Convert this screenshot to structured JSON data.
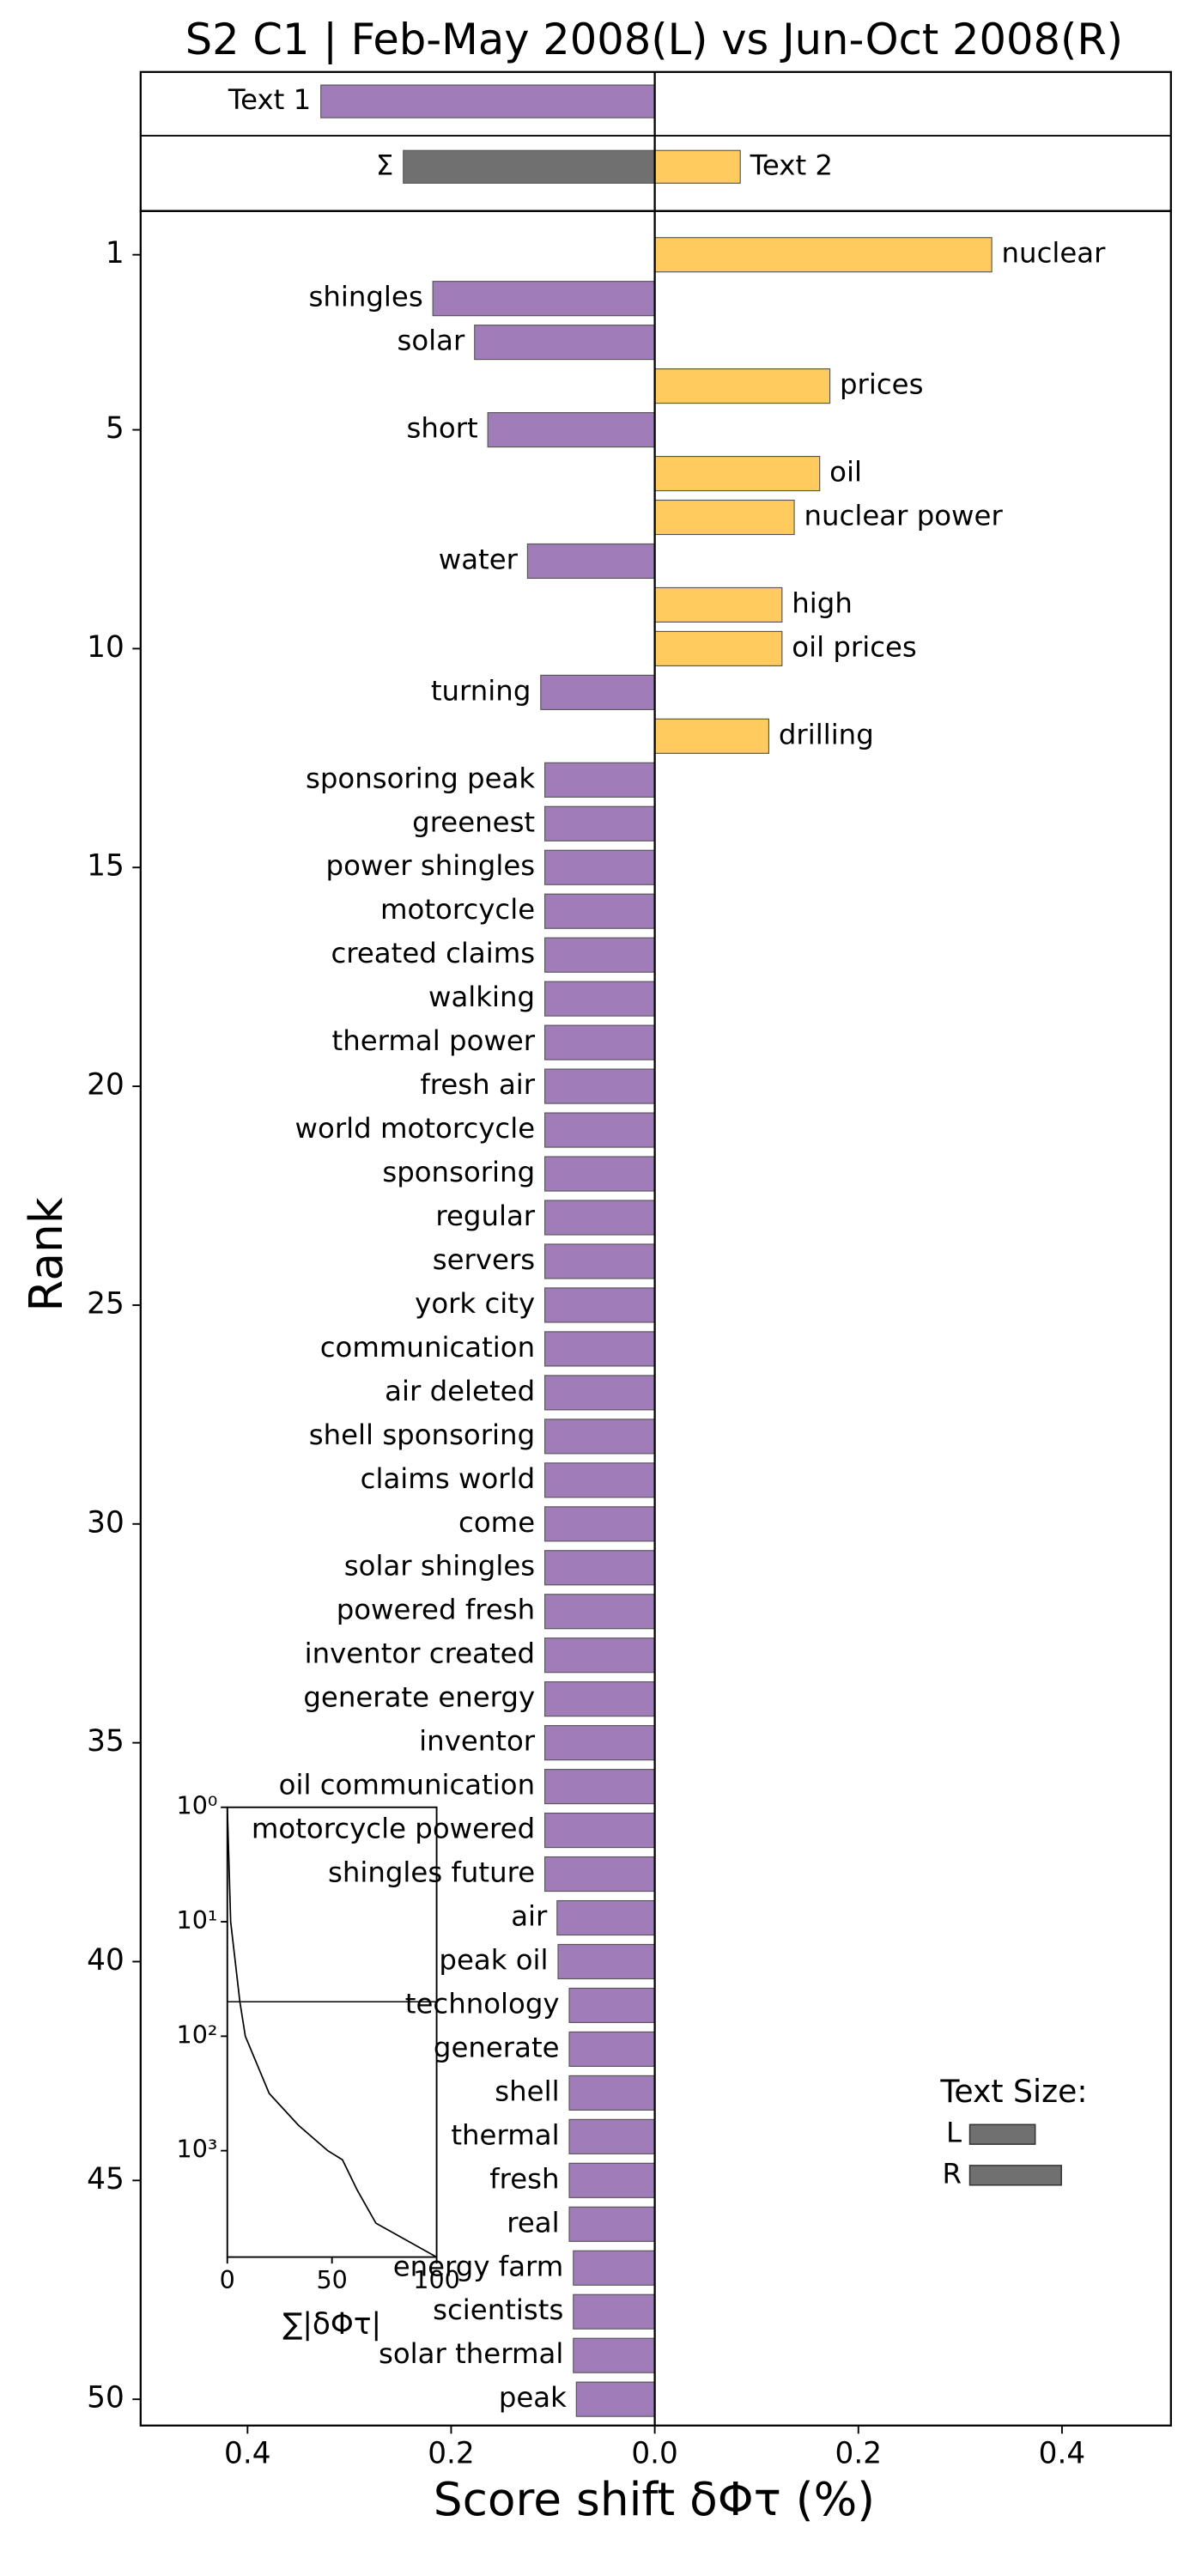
{
  "chart_data": {
    "type": "word_shift",
    "title": "S2 C1 | Feb-May 2008(L) vs Jun-Oct 2008(R)",
    "xlabel": "Score shift δΦτ (%)",
    "ylabel": "Rank",
    "xlim": [
      -0.505,
      0.507
    ],
    "xticks": [
      {
        "value": -0.4,
        "label": "0.4"
      },
      {
        "value": -0.2,
        "label": "0.2"
      },
      {
        "value": 0,
        "label": "0.0"
      },
      {
        "value": 0.2,
        "label": "0.2"
      },
      {
        "value": 0.4,
        "label": "0.4"
      }
    ],
    "ylim": [
      50.6,
      0
    ],
    "yticks": [
      1,
      5,
      10,
      15,
      20,
      25,
      30,
      35,
      40,
      45,
      50
    ],
    "left_color": "#a07cb9",
    "right_color": "#ffcb5e",
    "words": [
      "nuclear",
      "shingles",
      "solar",
      "prices",
      "short",
      "oil",
      "nuclear power",
      "water",
      "high",
      "oil prices",
      "turning",
      "drilling",
      "sponsoring peak",
      "greenest",
      "power shingles",
      "motorcycle",
      "created claims",
      "walking",
      "thermal power",
      "fresh air",
      "world motorcycle",
      "sponsoring",
      "regular",
      "servers",
      "york city",
      "communication",
      "air deleted",
      "shell sponsoring",
      "claims world",
      "come",
      "solar shingles",
      "powered fresh",
      "inventor created",
      "generate energy",
      "inventor",
      "oil communication",
      "motorcycle powered",
      "shingles future",
      "air",
      "peak oil",
      "technology",
      "generate",
      "shell",
      "thermal",
      "fresh",
      "real",
      "energy farm",
      "scientists",
      "solar thermal",
      "peak"
    ],
    "values": [
      0.331,
      -0.218,
      -0.177,
      0.172,
      -0.164,
      0.162,
      0.137,
      -0.125,
      0.125,
      0.125,
      -0.112,
      0.112,
      -0.108,
      -0.108,
      -0.108,
      -0.108,
      -0.108,
      -0.108,
      -0.108,
      -0.108,
      -0.108,
      -0.108,
      -0.108,
      -0.108,
      -0.108,
      -0.108,
      -0.108,
      -0.108,
      -0.108,
      -0.108,
      -0.108,
      -0.108,
      -0.108,
      -0.108,
      -0.108,
      -0.108,
      -0.108,
      -0.108,
      -0.096,
      -0.095,
      -0.084,
      -0.084,
      -0.084,
      -0.084,
      -0.084,
      -0.084,
      -0.08,
      -0.08,
      -0.08,
      -0.077
    ],
    "summary": {
      "labels": [
        "Text 1",
        "Text 2",
        "Σ"
      ],
      "values": [
        -0.328,
        0.084,
        -0.247
      ],
      "colors": [
        "#a07cb9",
        "#ffcb5e",
        "#707070"
      ]
    },
    "inset": {
      "type": "line",
      "xlabel": "∑|δΦτ|",
      "x": [
        0,
        1.6,
        6,
        8.6,
        20,
        34,
        48,
        55,
        62,
        71,
        100
      ],
      "y": [
        1,
        10,
        50,
        100,
        316,
        600,
        1000,
        1200,
        2200,
        4300,
        8500
      ],
      "xlim": [
        0,
        100
      ],
      "ylim": [
        8500,
        1
      ],
      "log_y": true,
      "xticks": [
        0,
        50,
        100
      ],
      "yticks": [
        {
          "value": 1,
          "label": "10⁰"
        },
        {
          "value": 10,
          "label": "10¹"
        },
        {
          "value": 100,
          "label": "10²"
        },
        {
          "value": 1000,
          "label": "10³"
        }
      ],
      "reference_rank": 50
    },
    "text_size": {
      "title": "Text Size:",
      "labels": [
        "L",
        "R"
      ],
      "values": [
        0.714,
        1
      ],
      "color": "#707070"
    }
  }
}
